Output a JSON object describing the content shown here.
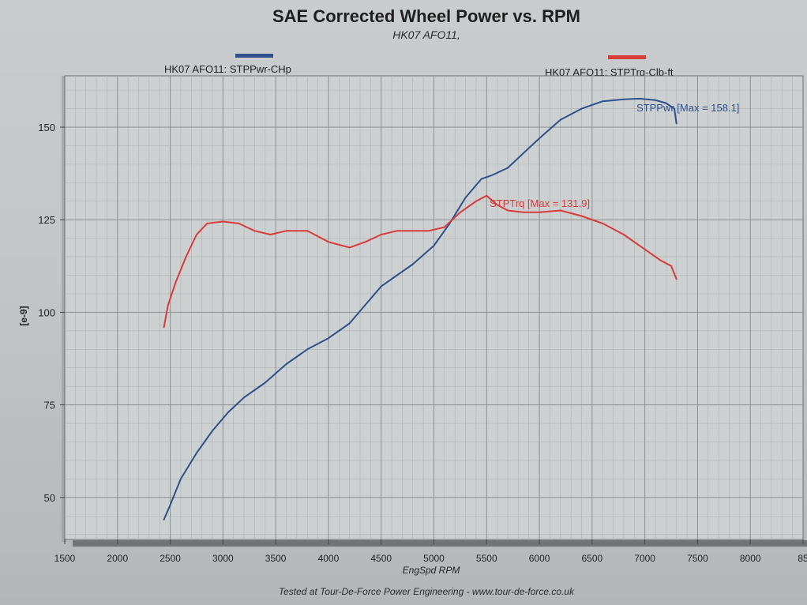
{
  "chart_data": {
    "type": "line",
    "title": "SAE Corrected Wheel Power vs. RPM",
    "subtitle": "HK07 AFO11,",
    "xlabel": "EngSpd RPM",
    "ylabel": "[e-9]",
    "xlim": [
      1500,
      8500
    ],
    "ylim": [
      40,
      165
    ],
    "x_ticks": [
      "1500",
      "2000",
      "2500",
      "3000",
      "3500",
      "4000",
      "4500",
      "5000",
      "5500",
      "6000",
      "6500",
      "7000",
      "7500",
      "8000",
      "85"
    ],
    "y_ticks": [
      "150",
      "125",
      "100",
      "75",
      "50"
    ],
    "grid": true,
    "legend": [
      {
        "label": "HK07 AFO11: STPPwr-CHp",
        "color": "#2d4f8c"
      },
      {
        "label": "HK07 AFO11: STPTrq-Clb-ft",
        "color": "#d83a3a"
      }
    ],
    "annotations": [
      {
        "text": "STPPwr [Max = 158.1]",
        "color": "#2d4f8c"
      },
      {
        "text": "STPTrq [Max = 131.9]",
        "color": "#d83a3a"
      }
    ],
    "series": [
      {
        "color": "#2d4f8c",
        "x": [
          2440,
          2500,
          2600,
          2750,
          2900,
          3050,
          3200,
          3400,
          3600,
          3800,
          4000,
          4200,
          4350,
          4500,
          4650,
          4800,
          5000,
          5150,
          5300,
          5450,
          5550,
          5700,
          5850,
          6000,
          6200,
          6400,
          6600,
          6800,
          6950,
          7100,
          7200,
          7280,
          7300
        ],
        "y": [
          44,
          48,
          55,
          62,
          68,
          73,
          77,
          81,
          86,
          90,
          93,
          97,
          102,
          107,
          110,
          113,
          118,
          124,
          131,
          136,
          137,
          139,
          143,
          147,
          152,
          155,
          157,
          157.5,
          157.7,
          157.3,
          156.5,
          155,
          151
        ]
      },
      {
        "color": "#d83a3a",
        "x": [
          2440,
          2480,
          2550,
          2650,
          2750,
          2850,
          3000,
          3150,
          3300,
          3450,
          3600,
          3800,
          4000,
          4200,
          4350,
          4500,
          4650,
          4800,
          4950,
          5100,
          5250,
          5400,
          5500,
          5600,
          5700,
          5850,
          6000,
          6200,
          6400,
          6600,
          6800,
          7000,
          7150,
          7250,
          7300
        ],
        "y": [
          96,
          102,
          108,
          115,
          121,
          124,
          124.5,
          124,
          122,
          121,
          122,
          122,
          119,
          117.5,
          119,
          121,
          122,
          122,
          122,
          123,
          127,
          130,
          131.5,
          129,
          127.5,
          127,
          127,
          127.5,
          126,
          124,
          121,
          117,
          114,
          112.5,
          109
        ]
      }
    ]
  },
  "footer": "Tested at Tour-De-Force Power Engineering - www.tour-de-force.co.uk"
}
